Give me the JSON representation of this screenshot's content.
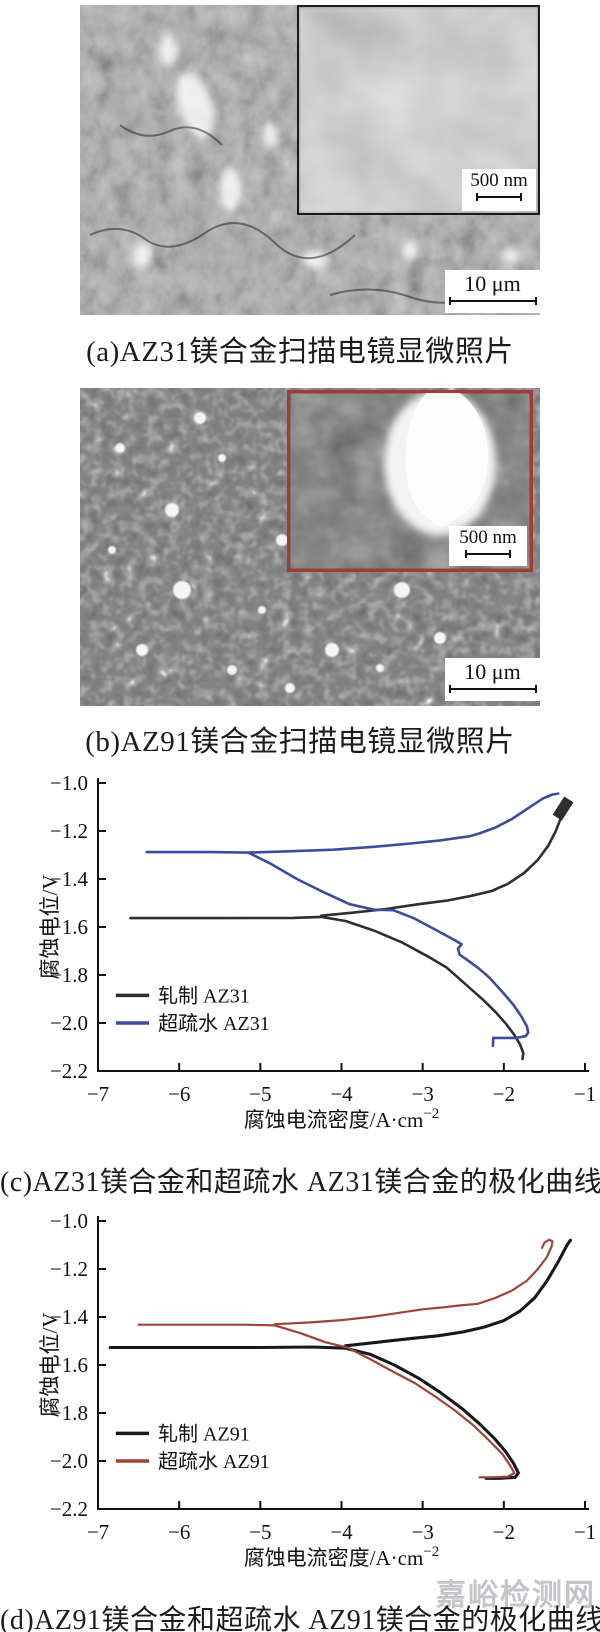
{
  "watermark": {
    "text": "嘉峪检测网"
  },
  "panels": {
    "a": {
      "caption": "(a)AZ31镁合金扫描电镜显微照片",
      "scale_main": "10 μm",
      "scale_inset": "500 nm"
    },
    "b": {
      "caption": "(b)AZ91镁合金扫描电镜显微照片",
      "scale_main": "10 μm",
      "scale_inset": "500 nm"
    }
  },
  "chart_data": [
    {
      "id": "chart-c",
      "type": "line",
      "caption": "(c)AZ31镁合金和超疏水 AZ31镁合金的极化曲线",
      "xlabel": "腐蚀电流密度/A·cm",
      "xlabel_sup": "−2",
      "ylabel": "腐蚀电位/V",
      "xlim": [
        -7,
        -1
      ],
      "ylim": [
        -2.2,
        -1.0
      ],
      "xticks": [
        -7,
        -6,
        -5,
        -4,
        -3,
        -2,
        -1
      ],
      "yticks": [
        -1.0,
        -1.2,
        -1.4,
        -1.6,
        -1.8,
        -2.0,
        -2.2
      ],
      "grid": false,
      "legend_position": "lower-left",
      "legend_rows_E": [
        -1.885,
        -2.0
      ],
      "series": [
        {
          "name": "轧制 AZ31",
          "color": "#2f2f2f",
          "width": 2.6,
          "paths": [
            [
              [
                -6.6,
                -1.563
              ],
              [
                -5.5,
                -1.563
              ],
              [
                -4.6,
                -1.562
              ],
              [
                -4.25,
                -1.558
              ],
              [
                -3.95,
                -1.575
              ],
              [
                -3.6,
                -1.615
              ],
              [
                -3.25,
                -1.665
              ],
              [
                -2.95,
                -1.72
              ],
              [
                -2.7,
                -1.77
              ],
              [
                -2.45,
                -1.845
              ],
              [
                -2.25,
                -1.905
              ],
              [
                -2.1,
                -1.955
              ],
              [
                -1.97,
                -2.005
              ],
              [
                -1.87,
                -2.05
              ],
              [
                -1.8,
                -2.09
              ],
              [
                -1.76,
                -2.125
              ],
              [
                -1.77,
                -2.15
              ]
            ],
            [
              [
                -4.25,
                -1.553
              ],
              [
                -3.85,
                -1.54
              ],
              [
                -3.45,
                -1.525
              ],
              [
                -3.05,
                -1.505
              ],
              [
                -2.7,
                -1.49
              ],
              [
                -2.4,
                -1.47
              ],
              [
                -2.15,
                -1.45
              ],
              [
                -1.95,
                -1.42
              ],
              [
                -1.75,
                -1.375
              ],
              [
                -1.58,
                -1.32
              ],
              [
                -1.45,
                -1.26
              ],
              [
                -1.36,
                -1.2
              ],
              [
                -1.28,
                -1.13
              ],
              [
                -1.25,
                -1.1
              ]
            ]
          ],
          "blob": [
            [
              -1.305,
              -1.125
            ],
            [
              -1.235,
              -1.088
            ]
          ]
        },
        {
          "name": "超疏水 AZ31",
          "color": "#3b4b9d",
          "width": 2.6,
          "paths": [
            [
              [
                -6.4,
                -1.288
              ],
              [
                -5.6,
                -1.288
              ],
              [
                -5.15,
                -1.29
              ],
              [
                -4.88,
                -1.335
              ],
              [
                -4.55,
                -1.4
              ],
              [
                -4.22,
                -1.455
              ],
              [
                -3.9,
                -1.505
              ],
              [
                -3.6,
                -1.528
              ],
              [
                -3.36,
                -1.53
              ],
              [
                -3.1,
                -1.565
              ],
              [
                -2.85,
                -1.61
              ],
              [
                -2.62,
                -1.652
              ],
              [
                -2.52,
                -1.672
              ],
              [
                -2.565,
                -1.69
              ],
              [
                -2.545,
                -1.715
              ],
              [
                -2.46,
                -1.735
              ],
              [
                -2.32,
                -1.77
              ],
              [
                -2.18,
                -1.81
              ],
              [
                -2.02,
                -1.87
              ],
              [
                -1.88,
                -1.925
              ],
              [
                -1.78,
                -1.975
              ],
              [
                -1.715,
                -2.015
              ],
              [
                -1.7,
                -2.04
              ],
              [
                -1.73,
                -2.055
              ],
              [
                -1.85,
                -2.062
              ],
              [
                -2.05,
                -2.062
              ],
              [
                -2.13,
                -2.062
              ],
              [
                -2.135,
                -2.095
              ]
            ],
            [
              [
                -5.15,
                -1.29
              ],
              [
                -4.6,
                -1.284
              ],
              [
                -4.1,
                -1.278
              ],
              [
                -3.6,
                -1.266
              ],
              [
                -3.15,
                -1.252
              ],
              [
                -2.8,
                -1.24
              ],
              [
                -2.55,
                -1.228
              ],
              [
                -2.42,
                -1.222
              ],
              [
                -2.3,
                -1.21
              ],
              [
                -2.1,
                -1.185
              ],
              [
                -1.9,
                -1.15
              ],
              [
                -1.7,
                -1.105
              ],
              [
                -1.52,
                -1.065
              ],
              [
                -1.4,
                -1.048
              ],
              [
                -1.33,
                -1.044
              ]
            ]
          ]
        }
      ]
    },
    {
      "id": "chart-d",
      "type": "line",
      "caption": "(d)AZ91镁合金和超疏水 AZ91镁合金的极化曲线",
      "xlabel": "腐蚀电流密度/A·cm",
      "xlabel_sup": "−2",
      "ylabel": "腐蚀电位/V",
      "xlim": [
        -7,
        -1
      ],
      "ylim": [
        -2.2,
        -1.0
      ],
      "xticks": [
        -7,
        -6,
        -5,
        -4,
        -3,
        -2,
        -1
      ],
      "yticks": [
        -1.0,
        -1.2,
        -1.4,
        -1.6,
        -1.8,
        -2.0,
        -2.2
      ],
      "grid": false,
      "legend_position": "lower-left",
      "legend_rows_E": [
        -1.885,
        -2.0
      ],
      "series": [
        {
          "name": "轧制 AZ91",
          "color": "#15181c",
          "width": 3.1,
          "paths": [
            [
              [
                -6.85,
                -1.527
              ],
              [
                -6.0,
                -1.527
              ],
              [
                -5.0,
                -1.527
              ],
              [
                -4.35,
                -1.525
              ],
              [
                -3.95,
                -1.53
              ],
              [
                -3.65,
                -1.555
              ],
              [
                -3.35,
                -1.6
              ],
              [
                -3.05,
                -1.655
              ],
              [
                -2.78,
                -1.715
              ],
              [
                -2.52,
                -1.78
              ],
              [
                -2.3,
                -1.845
              ],
              [
                -2.12,
                -1.905
              ],
              [
                -1.98,
                -1.96
              ],
              [
                -1.88,
                -2.01
              ],
              [
                -1.82,
                -2.05
              ],
              [
                -1.86,
                -2.068
              ],
              [
                -2.05,
                -2.072
              ],
              [
                -2.22,
                -2.072
              ]
            ],
            [
              [
                -3.95,
                -1.52
              ],
              [
                -3.55,
                -1.505
              ],
              [
                -3.15,
                -1.49
              ],
              [
                -2.8,
                -1.478
              ],
              [
                -2.5,
                -1.462
              ],
              [
                -2.25,
                -1.443
              ],
              [
                -2.0,
                -1.415
              ],
              [
                -1.8,
                -1.375
              ],
              [
                -1.62,
                -1.32
              ],
              [
                -1.47,
                -1.25
              ],
              [
                -1.33,
                -1.17
              ],
              [
                -1.22,
                -1.1
              ],
              [
                -1.18,
                -1.08
              ]
            ]
          ]
        },
        {
          "name": "超疏水 AZ91",
          "color": "#9e4438",
          "width": 2.2,
          "paths": [
            [
              [
                -6.5,
                -1.432
              ],
              [
                -5.8,
                -1.432
              ],
              [
                -5.2,
                -1.432
              ],
              [
                -4.82,
                -1.435
              ],
              [
                -4.5,
                -1.468
              ],
              [
                -4.2,
                -1.505
              ],
              [
                -3.93,
                -1.527
              ],
              [
                -3.65,
                -1.575
              ],
              [
                -3.38,
                -1.625
              ],
              [
                -3.1,
                -1.675
              ],
              [
                -2.85,
                -1.73
              ],
              [
                -2.6,
                -1.79
              ],
              [
                -2.38,
                -1.85
              ],
              [
                -2.18,
                -1.915
              ],
              [
                -2.02,
                -1.97
              ],
              [
                -1.92,
                -2.02
              ],
              [
                -1.87,
                -2.05
              ],
              [
                -1.95,
                -2.065
              ],
              [
                -2.15,
                -2.068
              ],
              [
                -2.3,
                -2.068
              ]
            ],
            [
              [
                -4.82,
                -1.43
              ],
              [
                -4.4,
                -1.423
              ],
              [
                -4.0,
                -1.413
              ],
              [
                -3.6,
                -1.398
              ],
              [
                -3.28,
                -1.382
              ],
              [
                -3.0,
                -1.368
              ],
              [
                -2.75,
                -1.36
              ],
              [
                -2.55,
                -1.352
              ],
              [
                -2.32,
                -1.345
              ],
              [
                -2.1,
                -1.32
              ],
              [
                -1.9,
                -1.29
              ],
              [
                -1.72,
                -1.25
              ],
              [
                -1.58,
                -1.2
              ],
              [
                -1.47,
                -1.15
              ],
              [
                -1.41,
                -1.105
              ],
              [
                -1.4,
                -1.085
              ],
              [
                -1.44,
                -1.078
              ],
              [
                -1.5,
                -1.09
              ],
              [
                -1.53,
                -1.112
              ]
            ]
          ]
        }
      ]
    }
  ]
}
